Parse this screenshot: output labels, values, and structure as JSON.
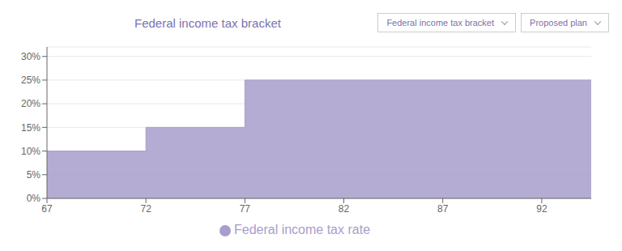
{
  "chart_data": {
    "type": "area",
    "title": "Federal income tax bracket",
    "annotations": [
      "Federal income tax bracket",
      "Proposed plan"
    ],
    "x": [
      67,
      72,
      72,
      77,
      77,
      94.5
    ],
    "series": [
      {
        "name": "Federal income tax rate",
        "color": "#a89dcc",
        "values": [
          10,
          10,
          15,
          15,
          25,
          25
        ]
      }
    ],
    "xlim": [
      67,
      94.5
    ],
    "xticks": [
      67,
      72,
      77,
      82,
      87,
      92
    ],
    "ylim": [
      0,
      32
    ],
    "yticks": [
      {
        "value": 0,
        "label": "0%"
      },
      {
        "value": 5,
        "label": "5%"
      },
      {
        "value": 10,
        "label": "10%"
      },
      {
        "value": 15,
        "label": "15%"
      },
      {
        "value": 20,
        "label": "20%"
      },
      {
        "value": 25,
        "label": "25%"
      },
      {
        "value": 30,
        "label": "30%"
      }
    ],
    "grid": true
  }
}
